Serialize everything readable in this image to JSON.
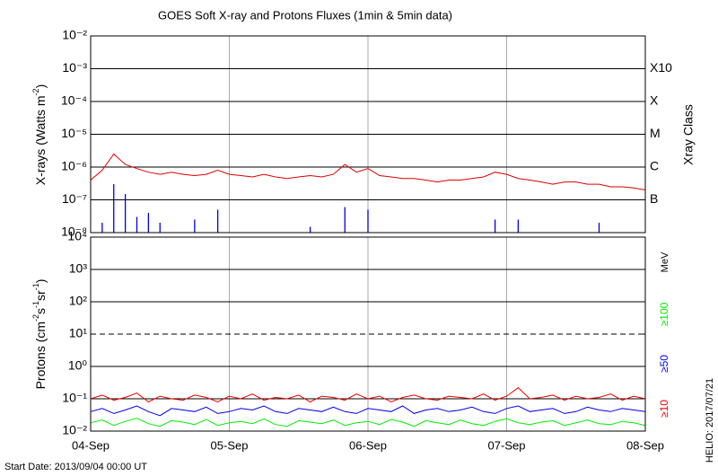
{
  "chart_data": [
    {
      "type": "line",
      "title": "GOES Soft X-ray and Protons Fluxes   (1min & 5min data)",
      "y_label": [
        {
          "text": "X-rays (Watts m"
        },
        {
          "text": "-2",
          "sup": true
        },
        {
          "text": ")"
        }
      ],
      "ylog": true,
      "ylim": [
        1e-08,
        0.01
      ],
      "yticks": [
        {
          "value": 1e-08,
          "label": "10⁻⁸"
        },
        {
          "value": 1e-07,
          "label": "10⁻⁷"
        },
        {
          "value": 1e-06,
          "label": "10⁻⁶"
        },
        {
          "value": 1e-05,
          "label": "10⁻⁵"
        },
        {
          "value": 0.0001,
          "label": "10⁻⁴"
        },
        {
          "value": 0.001,
          "label": "10⁻³"
        },
        {
          "value": 0.01,
          "label": "10⁻²"
        }
      ],
      "xlim": [
        0,
        96
      ],
      "xticks": [
        0,
        24,
        48,
        72,
        96
      ],
      "grid": true,
      "right_title": "Xray Class",
      "class_labels": [
        {
          "value": 0.001,
          "label": "X10"
        },
        {
          "value": 0.0001,
          "label": "X"
        },
        {
          "value": 1e-05,
          "label": "M"
        },
        {
          "value": 1e-06,
          "label": "C"
        },
        {
          "value": 1e-07,
          "label": "B"
        }
      ],
      "x": [
        0,
        2,
        4,
        6,
        8,
        10,
        12,
        14,
        16,
        18,
        20,
        22,
        24,
        26,
        28,
        30,
        32,
        34,
        36,
        38,
        40,
        42,
        44,
        46,
        48,
        50,
        52,
        54,
        56,
        58,
        60,
        62,
        64,
        66,
        68,
        70,
        72,
        74,
        76,
        78,
        80,
        82,
        84,
        86,
        88,
        90,
        92,
        94,
        96
      ],
      "series": [
        {
          "color": "#dd0000",
          "style": "line",
          "values": [
            4e-07,
            8e-07,
            2.5e-06,
            1.2e-06,
            9e-07,
            7e-07,
            6e-07,
            7e-07,
            6e-07,
            5.5e-07,
            6e-07,
            8e-07,
            6e-07,
            5.5e-07,
            5e-07,
            6e-07,
            5e-07,
            4.5e-07,
            5e-07,
            5.5e-07,
            5e-07,
            6e-07,
            1.2e-06,
            7e-07,
            9e-07,
            5.5e-07,
            5e-07,
            4.5e-07,
            4.5e-07,
            4e-07,
            3.5e-07,
            4e-07,
            4e-07,
            4.5e-07,
            5e-07,
            7e-07,
            6e-07,
            4.5e-07,
            4e-07,
            3.5e-07,
            3e-07,
            3.5e-07,
            3.5e-07,
            3e-07,
            3e-07,
            2.5e-07,
            2.5e-07,
            2.3e-07,
            2e-07
          ]
        },
        {
          "color": "#0000dd",
          "style": "needle",
          "values": [
            null,
            2e-08,
            3e-07,
            1.5e-07,
            3e-08,
            4e-08,
            2e-08,
            null,
            null,
            2.5e-08,
            null,
            5e-08,
            null,
            null,
            null,
            null,
            null,
            null,
            null,
            1.5e-08,
            null,
            null,
            6e-08,
            null,
            5e-08,
            null,
            null,
            null,
            null,
            null,
            null,
            null,
            null,
            null,
            null,
            2.5e-08,
            null,
            2.5e-08,
            null,
            null,
            null,
            null,
            null,
            null,
            2e-08,
            null,
            null,
            null,
            null
          ]
        }
      ]
    },
    {
      "type": "line",
      "y_label": [
        {
          "text": "Protons (cm"
        },
        {
          "text": "-2",
          "sup": true
        },
        {
          "text": "s"
        },
        {
          "text": "-1",
          "sup": true
        },
        {
          "text": "sr"
        },
        {
          "text": "-1",
          "sup": true
        },
        {
          "text": ")"
        }
      ],
      "ylog": true,
      "ylim": [
        0.01,
        10000.0
      ],
      "yticks": [
        {
          "value": 0.01,
          "label": "10⁻²"
        },
        {
          "value": 0.1,
          "label": "10⁻¹"
        },
        {
          "value": 1,
          "label": "10⁰"
        },
        {
          "value": 10,
          "label": "10¹"
        },
        {
          "value": 100,
          "label": "10²"
        },
        {
          "value": 1000,
          "label": "10³"
        },
        {
          "value": 10000,
          "label": "10⁴"
        }
      ],
      "xlim": [
        0,
        96
      ],
      "xticks": [
        {
          "value": 0,
          "label": "04-Sep"
        },
        {
          "value": 24,
          "label": "05-Sep"
        },
        {
          "value": 48,
          "label": "06-Sep"
        },
        {
          "value": 72,
          "label": "07-Sep"
        },
        {
          "value": 96,
          "label": "08-Sep"
        }
      ],
      "grid": true,
      "threshold": 10,
      "right_title": "MeV",
      "x": [
        0,
        2,
        4,
        6,
        8,
        10,
        12,
        14,
        16,
        18,
        20,
        22,
        24,
        26,
        28,
        30,
        32,
        34,
        36,
        38,
        40,
        42,
        44,
        46,
        48,
        50,
        52,
        54,
        56,
        58,
        60,
        62,
        64,
        66,
        68,
        70,
        72,
        74,
        76,
        78,
        80,
        82,
        84,
        86,
        88,
        90,
        92,
        94,
        96
      ],
      "series": [
        {
          "name": "≥10",
          "color": "#ee0000",
          "style": "line",
          "values": [
            0.1,
            0.13,
            0.09,
            0.11,
            0.15,
            0.08,
            0.12,
            0.1,
            0.09,
            0.13,
            0.11,
            0.08,
            0.12,
            0.1,
            0.14,
            0.09,
            0.11,
            0.1,
            0.13,
            0.08,
            0.12,
            0.11,
            0.09,
            0.14,
            0.1,
            0.12,
            0.08,
            0.11,
            0.13,
            0.1,
            0.09,
            0.12,
            0.11,
            0.1,
            0.14,
            0.09,
            0.12,
            0.22,
            0.1,
            0.11,
            0.13,
            0.09,
            0.12,
            0.1,
            0.11,
            0.14,
            0.09,
            0.12,
            0.1
          ]
        },
        {
          "name": "≥50",
          "color": "#0000ee",
          "style": "line",
          "values": [
            0.04,
            0.05,
            0.035,
            0.045,
            0.06,
            0.04,
            0.03,
            0.05,
            0.045,
            0.04,
            0.055,
            0.035,
            0.04,
            0.05,
            0.045,
            0.06,
            0.04,
            0.035,
            0.05,
            0.045,
            0.04,
            0.055,
            0.04,
            0.035,
            0.05,
            0.045,
            0.04,
            0.06,
            0.035,
            0.045,
            0.05,
            0.04,
            0.045,
            0.055,
            0.04,
            0.035,
            0.05,
            0.06,
            0.04,
            0.045,
            0.05,
            0.035,
            0.04,
            0.055,
            0.045,
            0.04,
            0.05,
            0.045,
            0.04
          ]
        },
        {
          "name": "≥100",
          "color": "#00ee00",
          "style": "line",
          "values": [
            0.018,
            0.022,
            0.015,
            0.02,
            0.025,
            0.017,
            0.014,
            0.021,
            0.019,
            0.016,
            0.023,
            0.015,
            0.018,
            0.02,
            0.017,
            0.024,
            0.016,
            0.014,
            0.021,
            0.019,
            0.017,
            0.022,
            0.015,
            0.018,
            0.02,
            0.016,
            0.023,
            0.019,
            0.014,
            0.021,
            0.018,
            0.016,
            0.022,
            0.017,
            0.015,
            0.02,
            0.024,
            0.018,
            0.016,
            0.019,
            0.021,
            0.015,
            0.018,
            0.022,
            0.017,
            0.016,
            0.02,
            0.018,
            0.015
          ]
        }
      ]
    }
  ],
  "start_date": "Start Date: 2013/09/04 00:00 UT",
  "credit": "HELIO: 2017/07/21"
}
